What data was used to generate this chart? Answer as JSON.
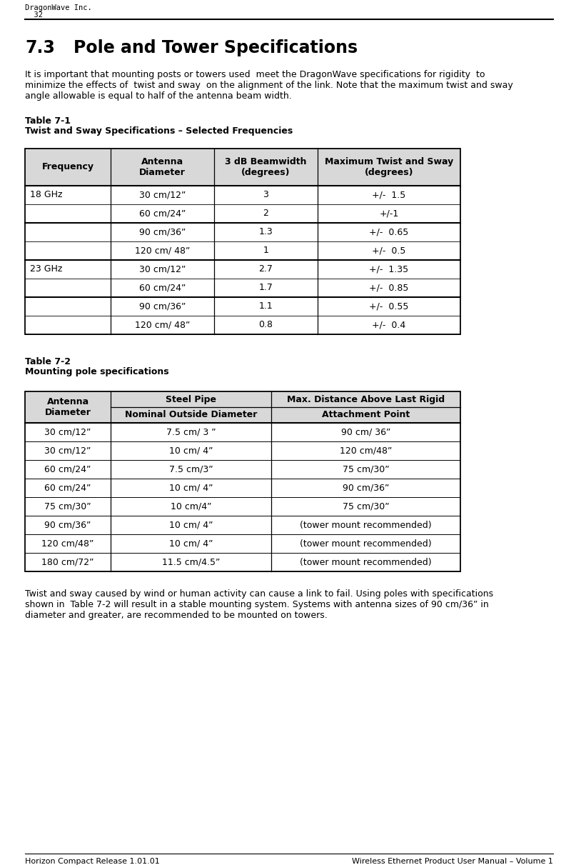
{
  "header_company": "DragonWave Inc.",
  "header_page": "  32",
  "footer_left": "Horizon Compact Release 1.01.01",
  "footer_right": "Wireless Ethernet Product User Manual – Volume 1",
  "section_number": "7.3",
  "section_title": "Pole and Tower Specifications",
  "body_text": "It is important that mounting posts or towers used  meet the DragonWave specifications for rigidity  to\nminimize the effects of  twist and sway  on the alignment of the link. Note that the maximum twist and sway\nangle allowable is equal to half of the antenna beam width.",
  "table1_label": "Table 7-1",
  "table1_subtitle": "Twist and Sway Specifications – Selected Frequencies",
  "table1_headers": [
    "Frequency",
    "Antenna\nDiameter",
    "3 dB Beamwidth\n(degrees)",
    "Maximum Twist and Sway\n(degrees)"
  ],
  "table1_rows": [
    [
      "18 GHz",
      "30 cm/12”",
      "3",
      "+/-  1.5"
    ],
    [
      "",
      "60 cm/24”",
      "2",
      "+/-1"
    ],
    [
      "",
      "90 cm/36”",
      "1.3",
      "+/-  0.65"
    ],
    [
      "",
      "120 cm/ 48”",
      "1",
      "+/-  0.5"
    ],
    [
      "23 GHz",
      "30 cm/12”",
      "2.7",
      "+/-  1.35"
    ],
    [
      "",
      "60 cm/24”",
      "1.7",
      "+/-  0.85"
    ],
    [
      "",
      "90 cm/36”",
      "1.1",
      "+/-  0.55"
    ],
    [
      "",
      "120 cm/ 48”",
      "0.8",
      "+/-  0.4"
    ]
  ],
  "table1_thick_lines": [
    2,
    4,
    6
  ],
  "table2_label": "Table 7-2",
  "table2_subtitle": "Mounting pole specifications",
  "table2_header_row1": [
    "Antenna\nDiameter",
    "Steel Pipe",
    "Max. Distance Above Last Rigid"
  ],
  "table2_header_row2": [
    "",
    "Nominal Outside Diameter",
    "Attachment Point"
  ],
  "table2_rows": [
    [
      "30 cm/12”",
      "7.5 cm/ 3 ”",
      "90 cm/ 36”"
    ],
    [
      "30 cm/12”",
      "10 cm/ 4”",
      "120 cm/48”"
    ],
    [
      "60 cm/24”",
      "7.5 cm/3”",
      "75 cm/30”"
    ],
    [
      "60 cm/24”",
      "10 cm/ 4”",
      "90 cm/36”"
    ],
    [
      "75 cm/30”",
      "10 cm/4”",
      "75 cm/30”"
    ],
    [
      "90 cm/36”",
      "10 cm/ 4”",
      "(tower mount recommended)"
    ],
    [
      "120 cm/48”",
      "10 cm/ 4”",
      "(tower mount recommended)"
    ],
    [
      "180 cm/72”",
      "11.5 cm/4.5”",
      "(tower mount recommended)"
    ]
  ],
  "closing_text": "Twist and sway caused by wind or human activity can cause a link to fail. Using poles with specifications\nshown in  Table 7-2 will result in a stable mounting system. Systems with antenna sizes of 90 cm/36” in\ndiameter and greater, are recommended to be mounted on towers.",
  "bg_color": "#ffffff",
  "text_color": "#000000",
  "table_header_bg": "#d8d8d8"
}
